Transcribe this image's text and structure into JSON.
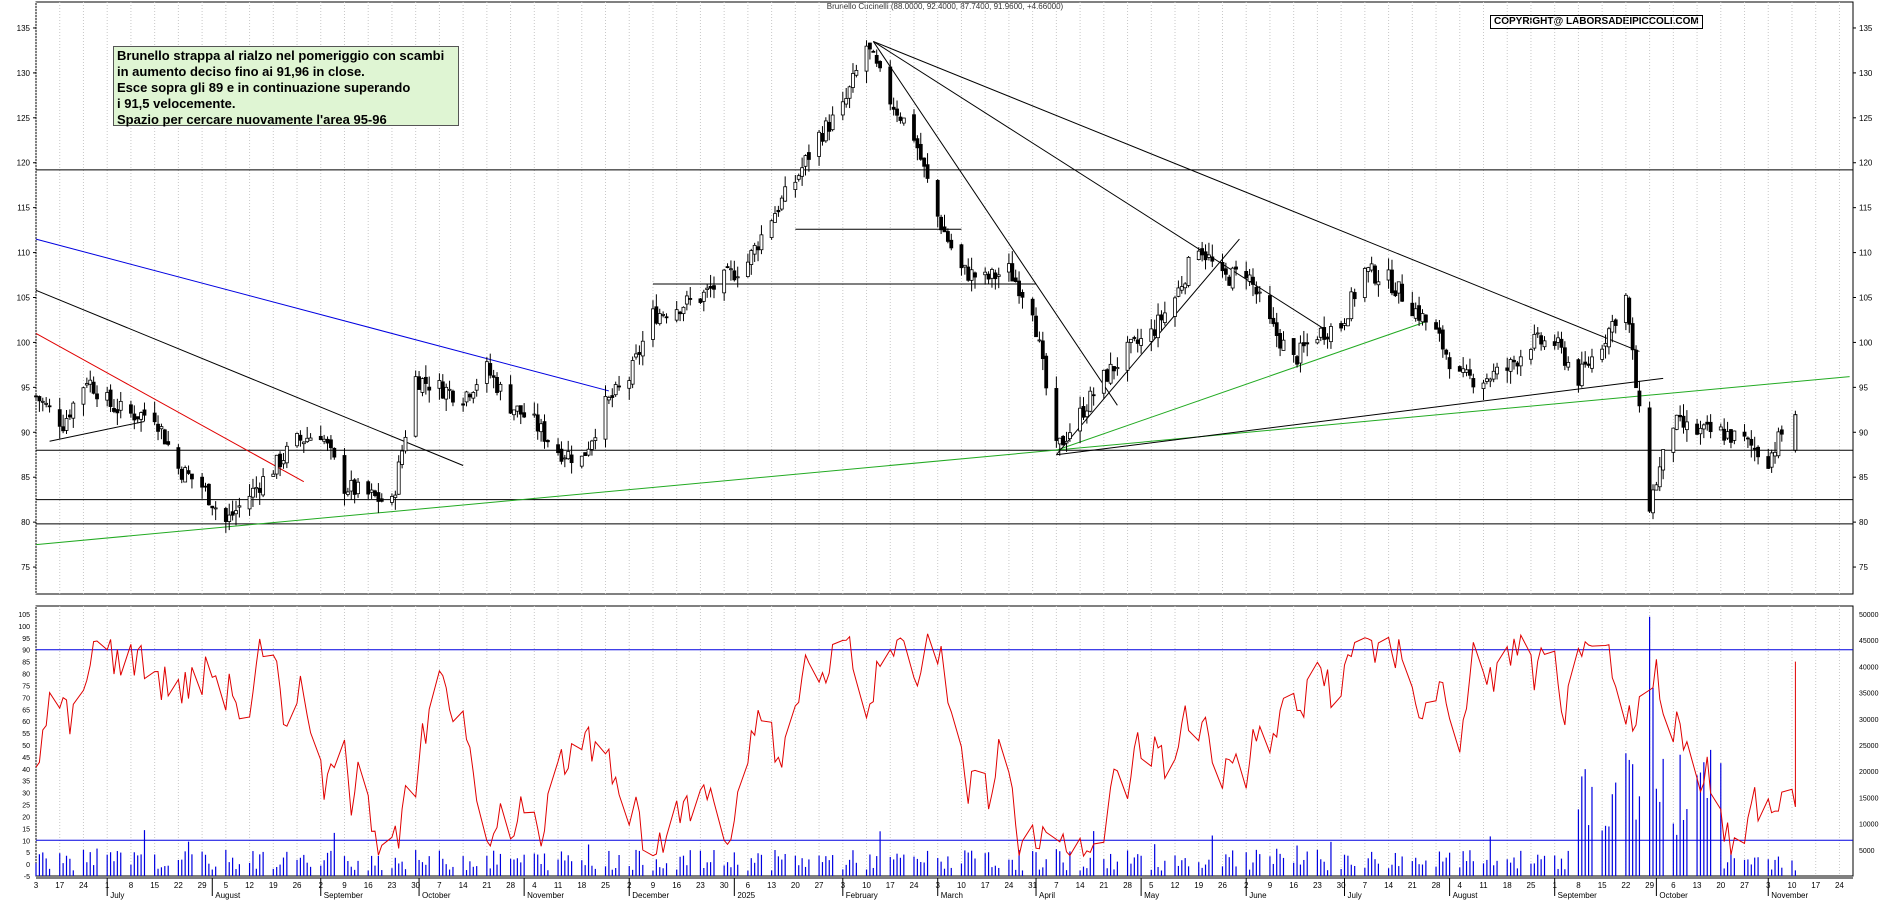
{
  "chart_title": "Brunello Cucinelli (88.0000, 92.4000, 87.7400, 91.9600, +4.66000)",
  "copyright": "COPYRIGHT@ LABORSADEIPICCOLI.COM",
  "note_lines": [
    "Brunello strappa al rialzo nel pomeriggio con scambi",
    "in aumento deciso fino ai 91,96 in close.",
    "Esce sopra gli 89 e in continuazione superando",
    "i 91,5 velocemente.",
    "Spazio per cercare nuovamente l'area 95-96"
  ],
  "chart_data": [
    {
      "type": "candlestick",
      "ylim": [
        72,
        137
      ],
      "yticks": [
        75,
        80,
        85,
        90,
        95,
        100,
        105,
        110,
        115,
        120,
        125,
        130,
        135
      ],
      "last": {
        "open": 88.0,
        "high": 92.4,
        "low": 87.74,
        "close": 91.96,
        "change": 4.66
      },
      "horizontal_levels": [
        119.2,
        88.0,
        82.5,
        79.8
      ],
      "range_lines": [
        {
          "y": 112.6,
          "from": "2025-01-20",
          "to": "2025-03-10"
        },
        {
          "y": 106.5,
          "from": "2024-12-09",
          "to": "2025-04-01"
        }
      ],
      "trendlines": [
        {
          "color": "#000000",
          "points": [
            [
              "2024-06-10",
              105.8
            ],
            [
              "2024-10-14",
              86.3
            ]
          ]
        },
        {
          "color": "#e00000",
          "points": [
            [
              "2024-06-10",
              101.0
            ],
            [
              "2024-08-28",
              84.5
            ]
          ]
        },
        {
          "color": "#0000e0",
          "points": [
            [
              "2024-06-10",
              111.5
            ],
            [
              "2024-11-26",
              94.6
            ]
          ]
        },
        {
          "color": "#22aa22",
          "points": [
            [
              "2024-06-10",
              77.5
            ],
            [
              "2025-11-27",
              96.2
            ]
          ]
        },
        {
          "color": "#22aa22",
          "points": [
            [
              "2025-04-07",
              88.0
            ],
            [
              "2025-07-25",
              102.3
            ]
          ]
        },
        {
          "color": "#000000",
          "points": [
            [
              "2025-02-12",
              133.5
            ],
            [
              "2025-09-26",
              99.0
            ]
          ]
        },
        {
          "color": "#000000",
          "points": [
            [
              "2025-02-12",
              133.5
            ],
            [
              "2025-06-25",
              101.5
            ]
          ]
        },
        {
          "color": "#000000",
          "points": [
            [
              "2025-02-12",
              133.5
            ],
            [
              "2025-04-25",
              93.0
            ]
          ]
        },
        {
          "color": "#000000",
          "points": [
            [
              "2025-04-07",
              87.5
            ],
            [
              "2025-05-31",
              111.5
            ]
          ]
        },
        {
          "color": "#000000",
          "points": [
            [
              "2025-04-07",
              87.5
            ],
            [
              "2025-10-03",
              96.0
            ]
          ]
        },
        {
          "color": "#000000",
          "points": [
            [
              "2024-06-14",
              89.0
            ],
            [
              "2024-07-12",
              91.2
            ]
          ]
        }
      ],
      "price_path": [
        [
          "2024-06-10",
          94
        ],
        [
          "2024-06-18",
          91
        ],
        [
          "2024-06-25",
          96
        ],
        [
          "2024-07-02",
          93
        ],
        [
          "2024-07-08",
          92
        ],
        [
          "2024-07-15",
          92
        ],
        [
          "2024-07-22",
          86
        ],
        [
          "2024-07-29",
          84
        ],
        [
          "2024-08-05",
          80
        ],
        [
          "2024-08-12",
          83
        ],
        [
          "2024-08-19",
          86
        ],
        [
          "2024-08-26",
          89
        ],
        [
          "2024-09-02",
          90
        ],
        [
          "2024-09-09",
          84
        ],
        [
          "2024-09-16",
          83
        ],
        [
          "2024-09-23",
          82
        ],
        [
          "2024-09-30",
          96
        ],
        [
          "2024-10-07",
          95
        ],
        [
          "2024-10-14",
          94
        ],
        [
          "2024-10-21",
          97
        ],
        [
          "2024-10-28",
          93
        ],
        [
          "2024-11-04",
          91
        ],
        [
          "2024-11-11",
          88
        ],
        [
          "2024-11-18",
          87
        ],
        [
          "2024-11-25",
          93
        ],
        [
          "2024-12-02",
          96
        ],
        [
          "2024-12-09",
          103
        ],
        [
          "2024-12-16",
          104
        ],
        [
          "2024-12-23",
          105
        ],
        [
          "2024-12-30",
          107
        ],
        [
          "2025-01-06",
          109
        ],
        [
          "2025-01-13",
          114
        ],
        [
          "2025-01-20",
          118
        ],
        [
          "2025-01-27",
          123
        ],
        [
          "2025-02-03",
          126
        ],
        [
          "2025-02-10",
          133
        ],
        [
          "2025-02-17",
          127
        ],
        [
          "2025-02-24",
          123
        ],
        [
          "2025-03-03",
          114
        ],
        [
          "2025-03-10",
          108
        ],
        [
          "2025-03-17",
          107
        ],
        [
          "2025-03-24",
          108
        ],
        [
          "2025-03-31",
          104
        ],
        [
          "2025-04-07",
          88
        ],
        [
          "2025-04-14",
          92
        ],
        [
          "2025-04-21",
          96
        ],
        [
          "2025-04-28",
          99
        ],
        [
          "2025-05-05",
          101
        ],
        [
          "2025-05-12",
          105
        ],
        [
          "2025-05-19",
          111
        ],
        [
          "2025-05-26",
          107
        ],
        [
          "2025-06-02",
          108
        ],
        [
          "2025-06-09",
          102
        ],
        [
          "2025-06-16",
          98
        ],
        [
          "2025-06-23",
          101
        ],
        [
          "2025-06-30",
          102
        ],
        [
          "2025-07-07",
          108
        ],
        [
          "2025-07-14",
          107
        ],
        [
          "2025-07-21",
          104
        ],
        [
          "2025-07-28",
          101
        ],
        [
          "2025-08-04",
          96
        ],
        [
          "2025-08-11",
          96
        ],
        [
          "2025-08-18",
          97
        ],
        [
          "2025-08-25",
          100
        ],
        [
          "2025-09-01",
          100
        ],
        [
          "2025-09-08",
          96
        ],
        [
          "2025-09-15",
          100
        ],
        [
          "2025-09-22",
          105
        ],
        [
          "2025-09-29",
          82
        ],
        [
          "2025-10-06",
          91
        ],
        [
          "2025-10-13",
          90
        ],
        [
          "2025-10-20",
          90
        ],
        [
          "2025-10-27",
          89
        ],
        [
          "2025-11-03",
          87
        ],
        [
          "2025-11-10",
          91.96
        ]
      ]
    },
    {
      "type": "line",
      "series": [],
      "ylim": [
        -5,
        105
      ],
      "left_ticks": [
        -5,
        0,
        5,
        10,
        15,
        20,
        25,
        30,
        35,
        40,
        45,
        50,
        55,
        60,
        65,
        70,
        75,
        80,
        85,
        90,
        95,
        100,
        105
      ],
      "right_ticks": [
        5000,
        10000,
        15000,
        20000,
        25000,
        30000,
        35000,
        40000,
        45000,
        50000
      ],
      "levels": [
        90,
        10
      ],
      "oscillator_last": 85,
      "volume_spike_date": "2025-09-29"
    }
  ],
  "x_axis": {
    "start": "2024-06-10",
    "end": "2025-11-28",
    "day_ticks": [
      "3",
      "17",
      "24",
      "1",
      "8",
      "15",
      "22",
      "29",
      "5",
      "12",
      "19",
      "26",
      "2",
      "9",
      "16",
      "23",
      "30",
      "7",
      "14",
      "21",
      "28",
      "4",
      "11",
      "18",
      "25",
      "2",
      "9",
      "16",
      "23",
      "30",
      "6",
      "13",
      "20",
      "27",
      "3",
      "10",
      "17",
      "24",
      "3",
      "10",
      "17",
      "24",
      "31",
      "7",
      "14",
      "21",
      "28",
      "5",
      "12",
      "19",
      "26",
      "2",
      "9",
      "16",
      "23",
      "30",
      "7",
      "14",
      "21",
      "28",
      "4",
      "11",
      "18",
      "25",
      "1",
      "8",
      "15",
      "22",
      "29",
      "6",
      "13",
      "20",
      "27",
      "3",
      "10",
      "17",
      "24"
    ],
    "month_labels": [
      {
        "date": "2024-07-01",
        "label": "July"
      },
      {
        "date": "2024-08-01",
        "label": "August"
      },
      {
        "date": "2024-09-02",
        "label": "September"
      },
      {
        "date": "2024-10-01",
        "label": "October"
      },
      {
        "date": "2024-11-01",
        "label": "November"
      },
      {
        "date": "2024-12-02",
        "label": "December"
      },
      {
        "date": "2025-01-02",
        "label": "2025"
      },
      {
        "date": "2025-02-03",
        "label": "February"
      },
      {
        "date": "2025-03-03",
        "label": "March"
      },
      {
        "date": "2025-04-01",
        "label": "April"
      },
      {
        "date": "2025-05-02",
        "label": "May"
      },
      {
        "date": "2025-06-02",
        "label": "June"
      },
      {
        "date": "2025-07-01",
        "label": "July"
      },
      {
        "date": "2025-08-01",
        "label": "August"
      },
      {
        "date": "2025-09-01",
        "label": "September"
      },
      {
        "date": "2025-10-01",
        "label": "October"
      },
      {
        "date": "2025-11-03",
        "label": "November"
      }
    ]
  },
  "colors": {
    "price_line": "#000000",
    "oscillator": "#e00000",
    "band": "#0000e0",
    "volume": "#0000e0",
    "grid": "#c8c8c8",
    "up_candle": "#ffffff",
    "down_candle": "#000000"
  }
}
